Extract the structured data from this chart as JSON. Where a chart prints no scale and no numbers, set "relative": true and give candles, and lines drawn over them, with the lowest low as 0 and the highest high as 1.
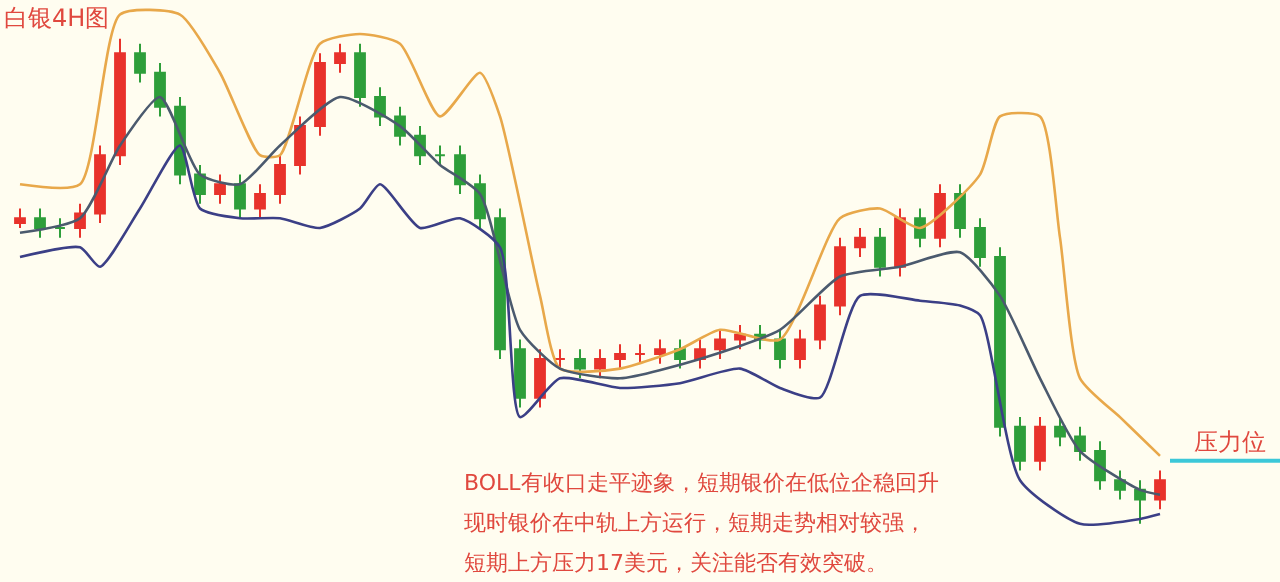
{
  "chart_data": {
    "type": "candlestick",
    "relative": true,
    "title": "白银4H图",
    "categories": [
      null,
      null,
      null,
      null,
      null,
      null,
      null,
      null,
      null,
      null,
      null,
      null,
      null,
      null,
      null,
      null,
      null,
      null,
      null,
      null,
      null,
      null,
      null,
      null,
      null,
      null,
      null,
      null,
      null,
      null,
      null,
      null,
      null,
      null,
      null,
      null,
      null,
      null,
      null,
      null,
      null,
      null,
      null,
      null,
      null,
      null,
      null,
      null,
      null,
      null,
      null,
      null,
      null,
      null,
      null,
      null,
      null,
      null
    ],
    "ohlc": [
      [
        0.62,
        0.65,
        0.61,
        0.63
      ],
      [
        0.63,
        0.65,
        0.59,
        0.61
      ],
      [
        0.61,
        0.63,
        0.59,
        0.61
      ],
      [
        0.61,
        0.66,
        0.59,
        0.64
      ],
      [
        0.64,
        0.78,
        0.62,
        0.76
      ],
      [
        0.76,
        1.0,
        0.74,
        0.97
      ],
      [
        0.97,
        0.99,
        0.91,
        0.93
      ],
      [
        0.93,
        0.95,
        0.84,
        0.86
      ],
      [
        0.86,
        0.88,
        0.7,
        0.72
      ],
      [
        0.72,
        0.74,
        0.66,
        0.68
      ],
      [
        0.68,
        0.72,
        0.66,
        0.7
      ],
      [
        0.7,
        0.72,
        0.63,
        0.65
      ],
      [
        0.65,
        0.7,
        0.63,
        0.68
      ],
      [
        0.68,
        0.76,
        0.66,
        0.74
      ],
      [
        0.74,
        0.84,
        0.72,
        0.82
      ],
      [
        0.82,
        0.97,
        0.8,
        0.95
      ],
      [
        0.95,
        0.99,
        0.93,
        0.97
      ],
      [
        0.97,
        0.99,
        0.86,
        0.88
      ],
      [
        0.88,
        0.9,
        0.82,
        0.84
      ],
      [
        0.84,
        0.86,
        0.78,
        0.8
      ],
      [
        0.8,
        0.82,
        0.74,
        0.76
      ],
      [
        0.76,
        0.78,
        0.74,
        0.76
      ],
      [
        0.76,
        0.78,
        0.68,
        0.7
      ],
      [
        0.7,
        0.72,
        0.61,
        0.63
      ],
      [
        0.63,
        0.65,
        0.34,
        0.36
      ],
      [
        0.36,
        0.38,
        0.24,
        0.26
      ],
      [
        0.26,
        0.36,
        0.24,
        0.34
      ],
      [
        0.34,
        0.36,
        0.32,
        0.34
      ],
      [
        0.34,
        0.36,
        0.3,
        0.32
      ],
      [
        0.32,
        0.36,
        0.3,
        0.34
      ],
      [
        0.34,
        0.37,
        0.32,
        0.35
      ],
      [
        0.35,
        0.37,
        0.33,
        0.35
      ],
      [
        0.35,
        0.38,
        0.33,
        0.36
      ],
      [
        0.36,
        0.38,
        0.32,
        0.34
      ],
      [
        0.34,
        0.38,
        0.32,
        0.36
      ],
      [
        0.36,
        0.4,
        0.34,
        0.38
      ],
      [
        0.38,
        0.41,
        0.36,
        0.39
      ],
      [
        0.39,
        0.41,
        0.36,
        0.38
      ],
      [
        0.38,
        0.4,
        0.32,
        0.34
      ],
      [
        0.34,
        0.4,
        0.32,
        0.38
      ],
      [
        0.38,
        0.47,
        0.36,
        0.45
      ],
      [
        0.45,
        0.59,
        0.43,
        0.57
      ],
      [
        0.57,
        0.61,
        0.55,
        0.59
      ],
      [
        0.59,
        0.61,
        0.51,
        0.53
      ],
      [
        0.53,
        0.65,
        0.51,
        0.63
      ],
      [
        0.63,
        0.65,
        0.57,
        0.59
      ],
      [
        0.59,
        0.7,
        0.57,
        0.68
      ],
      [
        0.68,
        0.7,
        0.59,
        0.61
      ],
      [
        0.61,
        0.63,
        0.53,
        0.55
      ],
      [
        0.55,
        0.57,
        0.18,
        0.2
      ],
      [
        0.2,
        0.22,
        0.11,
        0.13
      ],
      [
        0.13,
        0.22,
        0.11,
        0.2
      ],
      [
        0.2,
        0.22,
        0.16,
        0.18
      ],
      [
        0.18,
        0.2,
        0.13,
        0.15
      ],
      [
        0.15,
        0.17,
        0.07,
        0.09
      ],
      [
        0.09,
        0.11,
        0.05,
        0.07
      ],
      [
        0.07,
        0.09,
        0.0,
        0.05
      ],
      [
        0.05,
        0.11,
        0.03,
        0.09
      ]
    ],
    "series": [
      {
        "type": "line",
        "color": "#e8a84a",
        "values": [
          0.7,
          null,
          null,
          0.7,
          null,
          1.05,
          null,
          null,
          1.05,
          null,
          0.93,
          null,
          0.76,
          0.76,
          null,
          0.99,
          null,
          1.01,
          null,
          0.99,
          null,
          0.84,
          null,
          0.93,
          0.84,
          null,
          0.47,
          0.32,
          null,
          null,
          0.32,
          null,
          null,
          0.36,
          null,
          0.4,
          null,
          null,
          0.38,
          null,
          null,
          0.63,
          null,
          0.65,
          null,
          0.61,
          null,
          null,
          0.72,
          0.84,
          null,
          0.84,
          0.59,
          0.3,
          null,
          0.22,
          0.18,
          0.14
        ]
      },
      {
        "type": "line",
        "color": "#4b5a6e",
        "values": [
          0.6,
          null,
          null,
          0.63,
          null,
          0.78,
          null,
          0.88,
          null,
          0.72,
          null,
          0.7,
          null,
          0.78,
          null,
          null,
          0.88,
          null,
          null,
          0.82,
          null,
          0.74,
          null,
          0.68,
          null,
          0.4,
          null,
          0.32,
          null,
          null,
          0.3,
          null,
          null,
          null,
          0.34,
          null,
          null,
          null,
          0.4,
          null,
          null,
          0.51,
          null,
          null,
          0.53,
          null,
          null,
          0.56,
          null,
          0.47,
          null,
          0.3,
          null,
          0.15,
          null,
          null,
          0.07,
          0.06
        ]
      },
      {
        "type": "line",
        "color": "#3b3f86",
        "values": [
          0.55,
          null,
          null,
          0.57,
          0.53,
          null,
          0.65,
          null,
          0.78,
          0.65,
          null,
          0.63,
          null,
          0.63,
          null,
          0.61,
          null,
          0.65,
          0.7,
          null,
          0.61,
          null,
          0.63,
          null,
          0.57,
          0.22,
          null,
          0.3,
          null,
          null,
          0.28,
          null,
          null,
          0.29,
          null,
          null,
          0.32,
          null,
          0.28,
          null,
          0.26,
          null,
          0.47,
          null,
          null,
          0.46,
          null,
          0.45,
          0.43,
          null,
          0.09,
          null,
          null,
          0.0,
          null,
          null,
          0.01,
          0.02
        ]
      }
    ],
    "ref_lines": [
      {
        "axis": "y",
        "value": 0.13,
        "label": "压力位",
        "color": "#3cc8d8"
      }
    ],
    "annotations": [
      "BOLL有收口走平迹象，短期银价在低位企稳回升",
      "现时银价在中轨上方运行，短期走势相对较强，",
      "短期上方压力17美元，关注能否有效突破。"
    ]
  }
}
